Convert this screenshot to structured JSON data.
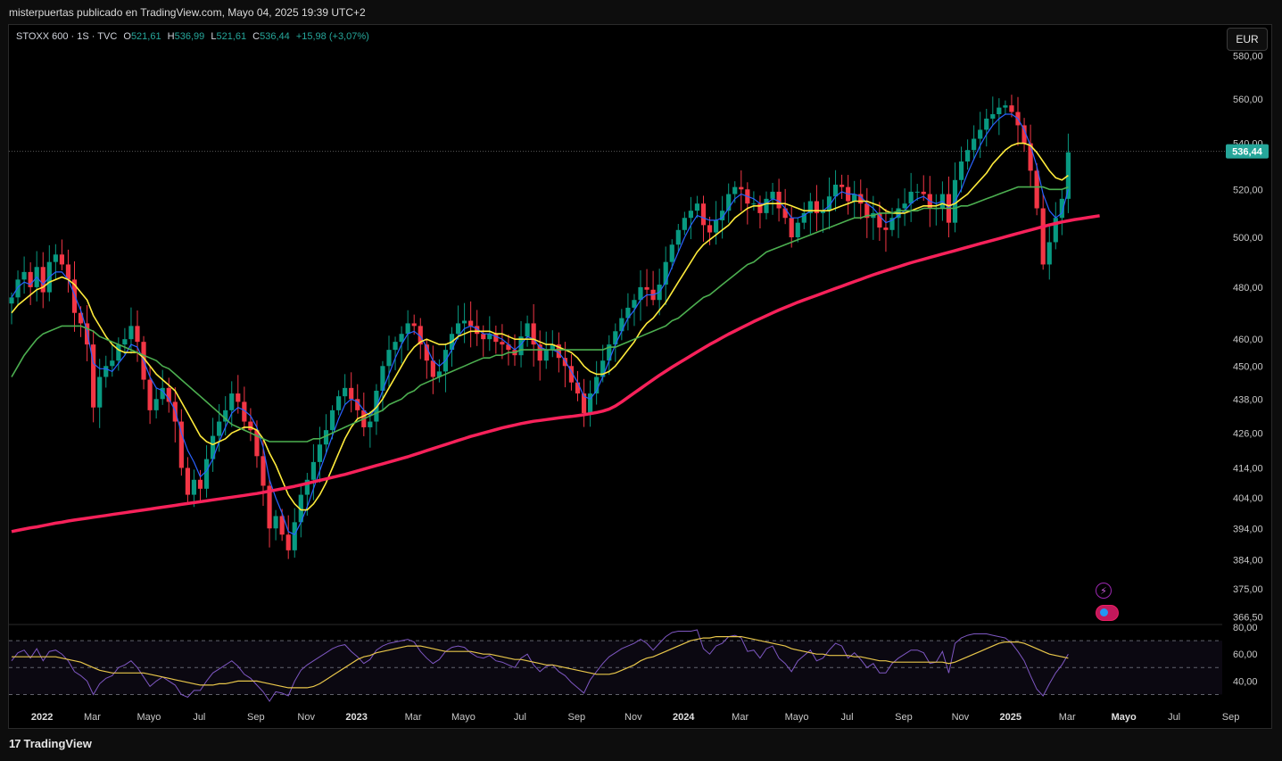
{
  "header": {
    "publisher_line": "misterpuertas publicado en TradingView.com, Mayo 04, 2025 19:39 UTC+2"
  },
  "legend": {
    "symbol": "STOXX 600 · 1S · TVC",
    "o_label": "O",
    "o_value": "521,61",
    "h_label": "H",
    "h_value": "536,99",
    "l_label": "L",
    "l_value": "521,61",
    "c_label": "C",
    "c_value": "536,44",
    "change": "+15,98 (+3,07%)"
  },
  "currency_button": "EUR",
  "last_price_label": "536,44",
  "footer": {
    "brand": "TradingView",
    "logo_glyph": "17"
  },
  "icons": {
    "bolt": "lightning-icon",
    "events": "events-icon",
    "bolt_glyph": "⚡"
  },
  "colors": {
    "up": "#089981",
    "down": "#f23645",
    "ma_fast": "#2962ff",
    "ma_mid": "#ffeb3b",
    "ma_slow": "#4caf50",
    "ma_long": "#f7215a",
    "rsi": "#7e57c2",
    "rsi_ma": "#e8c64a",
    "price_label_bg": "#26a69a"
  },
  "chart_data": {
    "type": "candlestick",
    "timeframe": "1S",
    "price_axis": {
      "scale": "log",
      "ylim": [
        365,
        582
      ],
      "ticks": [
        366.5,
        375,
        384,
        394,
        404,
        414,
        426,
        438,
        450,
        460,
        480,
        500,
        520,
        540,
        560,
        580
      ],
      "tick_labels": [
        "366,50",
        "375,00",
        "384,00",
        "394,00",
        "404,00",
        "414,00",
        "426,00",
        "438,00",
        "450,00",
        "460,00",
        "480,00",
        "500,00",
        "520,00",
        "540,00",
        "560,00",
        "580,00"
      ],
      "last_price": 536.44
    },
    "time_axis": {
      "labels": [
        "2022",
        "Mar",
        "Mayo",
        "Jul",
        "Sep",
        "Nov",
        "2023",
        "Mar",
        "Mayo",
        "Jul",
        "Sep",
        "Nov",
        "2024",
        "Mar",
        "Mayo",
        "Jul",
        "Sep",
        "Nov",
        "2025",
        "Mar",
        "Mayo",
        "Jul",
        "Sep"
      ],
      "bold": [
        true,
        false,
        false,
        false,
        false,
        false,
        true,
        false,
        false,
        false,
        false,
        false,
        true,
        false,
        false,
        false,
        false,
        false,
        true,
        false,
        true,
        false,
        false
      ],
      "week_index": [
        2,
        10,
        19,
        27,
        36,
        44,
        52,
        61,
        69,
        78,
        87,
        96,
        104,
        113,
        122,
        130,
        139,
        148,
        156,
        165,
        174,
        182,
        191
      ]
    },
    "closes": [
      476,
      483,
      486,
      480,
      488,
      478,
      490,
      493,
      489,
      483,
      470,
      466,
      458,
      435,
      446,
      450,
      452,
      458,
      460,
      465,
      459,
      445,
      434,
      438,
      442,
      437,
      430,
      414,
      405,
      410,
      407,
      417,
      425,
      430,
      434,
      440,
      437,
      430,
      427,
      418,
      408,
      394,
      398,
      392,
      387,
      396,
      405,
      410,
      416,
      422,
      427,
      434,
      439,
      442,
      438,
      434,
      428,
      430,
      441,
      450,
      456,
      459,
      462,
      466,
      465,
      458,
      452,
      446,
      448,
      456,
      462,
      466,
      467,
      465,
      462,
      460,
      462,
      459,
      458,
      456,
      454,
      461,
      466,
      458,
      452,
      456,
      458,
      453,
      450,
      444,
      440,
      433,
      440,
      446,
      452,
      458,
      463,
      468,
      472,
      475,
      480,
      479,
      475,
      481,
      490,
      497,
      503,
      508,
      511,
      514,
      505,
      502,
      507,
      511,
      518,
      521,
      520,
      514,
      514,
      510,
      516,
      519,
      512,
      508,
      500,
      506,
      510,
      515,
      510,
      511,
      517,
      522,
      521,
      515,
      518,
      514,
      508,
      510,
      504,
      503,
      508,
      512,
      514,
      519,
      519,
      518,
      512,
      512,
      518,
      506,
      524,
      532,
      537,
      542,
      546,
      551,
      553,
      556,
      557,
      554,
      548,
      540,
      528,
      512,
      489,
      498,
      508,
      516,
      536
    ],
    "series": [
      {
        "name": "MA fast",
        "values": [
          476,
          480,
          482,
          481,
          484,
          481,
          484,
          486,
          486,
          483,
          477,
          471,
          463,
          451,
          449,
          449,
          448,
          451,
          454,
          458,
          457,
          452,
          446,
          442,
          441,
          438,
          434,
          426,
          420,
          416,
          411,
          413,
          417,
          423,
          428,
          433,
          435,
          434,
          432,
          428,
          421,
          410,
          404,
          399,
          393,
          392,
          396,
          401,
          407,
          413,
          419,
          425,
          431,
          436,
          438,
          437,
          434,
          432,
          435,
          441,
          447,
          453,
          458,
          462,
          463,
          461,
          457,
          452,
          450,
          452,
          456,
          461,
          464,
          465,
          464,
          462,
          462,
          461,
          460,
          458,
          456,
          458,
          461,
          460,
          457,
          456,
          456,
          455,
          452,
          448,
          444,
          439,
          438,
          441,
          446,
          452,
          458,
          463,
          468,
          471,
          475,
          477,
          477,
          478,
          482,
          488,
          494,
          500,
          505,
          509,
          508,
          507,
          507,
          508,
          512,
          516,
          518,
          517,
          516,
          514,
          514,
          516,
          515,
          512,
          508,
          508,
          509,
          511,
          511,
          511,
          513,
          517,
          519,
          518,
          518,
          517,
          514,
          512,
          509,
          506,
          507,
          509,
          511,
          514,
          516,
          517,
          515,
          514,
          515,
          512,
          515,
          520,
          527,
          533,
          539,
          544,
          548,
          551,
          553,
          553,
          551,
          546,
          539,
          530,
          518,
          511,
          508,
          510,
          520
        ]
      },
      {
        "name": "MA mid",
        "values": [
          470,
          473,
          475,
          477,
          479,
          480,
          482,
          483,
          484,
          483,
          481,
          478,
          475,
          469,
          465,
          461,
          458,
          456,
          455,
          455,
          455,
          453,
          450,
          447,
          445,
          443,
          441,
          437,
          433,
          429,
          425,
          423,
          422,
          423,
          424,
          426,
          427,
          428,
          428,
          427,
          424,
          419,
          415,
          410,
          405,
          402,
          400,
          400,
          402,
          405,
          409,
          414,
          419,
          424,
          428,
          431,
          432,
          433,
          435,
          438,
          442,
          446,
          450,
          454,
          457,
          459,
          460,
          459,
          458,
          458,
          459,
          461,
          462,
          463,
          463,
          463,
          463,
          462,
          462,
          461,
          460,
          460,
          460,
          460,
          459,
          458,
          458,
          457,
          456,
          455,
          453,
          450,
          448,
          447,
          447,
          448,
          450,
          453,
          456,
          459,
          463,
          466,
          468,
          471,
          474,
          478,
          482,
          486,
          490,
          494,
          497,
          499,
          501,
          503,
          505,
          508,
          510,
          512,
          513,
          513,
          514,
          514,
          514,
          514,
          513,
          512,
          511,
          511,
          511,
          511,
          511,
          512,
          513,
          514,
          515,
          515,
          515,
          514,
          513,
          511,
          510,
          510,
          510,
          511,
          512,
          513,
          513,
          513,
          514,
          513,
          514,
          516,
          518,
          521,
          524,
          527,
          531,
          534,
          537,
          539,
          540,
          540,
          539,
          536,
          532,
          528,
          525,
          524,
          526
        ]
      },
      {
        "name": "MA slow",
        "values": [
          446,
          450,
          454,
          457,
          460,
          462,
          463,
          464,
          465,
          465,
          465,
          465,
          464,
          463,
          461,
          460,
          459,
          458,
          457,
          456,
          455,
          454,
          453,
          452,
          450,
          449,
          447,
          445,
          443,
          441,
          439,
          437,
          435,
          433,
          431,
          429,
          428,
          427,
          426,
          425,
          424,
          423,
          423,
          423,
          423,
          423,
          423,
          423,
          424,
          424,
          425,
          426,
          427,
          428,
          429,
          430,
          431,
          432,
          433,
          434,
          436,
          437,
          438,
          440,
          441,
          443,
          444,
          445,
          446,
          447,
          448,
          449,
          450,
          451,
          452,
          453,
          453,
          454,
          454,
          455,
          455,
          456,
          456,
          456,
          456,
          456,
          456,
          456,
          456,
          456,
          456,
          456,
          456,
          456,
          456,
          457,
          457,
          458,
          459,
          460,
          461,
          462,
          463,
          464,
          465,
          467,
          468,
          470,
          472,
          474,
          476,
          477,
          479,
          481,
          483,
          485,
          487,
          489,
          490,
          492,
          494,
          495,
          496,
          497,
          498,
          499,
          500,
          501,
          502,
          503,
          504,
          505,
          506,
          507,
          508,
          508,
          509,
          509,
          510,
          510,
          510,
          511,
          511,
          511,
          511,
          512,
          512,
          512,
          512,
          512,
          512,
          513,
          513,
          514,
          515,
          516,
          517,
          518,
          519,
          520,
          521,
          521,
          521,
          521,
          521,
          520,
          520,
          520,
          521
        ]
      },
      {
        "name": "MA long",
        "values": [
          393.0,
          393.4,
          393.8,
          394.2,
          394.5,
          394.9,
          395.3,
          395.7,
          396.0,
          396.4,
          396.7,
          397.0,
          397.3,
          397.6,
          397.9,
          398.2,
          398.5,
          398.8,
          399.1,
          399.4,
          399.7,
          400.0,
          400.3,
          400.6,
          400.9,
          401.2,
          401.5,
          401.8,
          402.1,
          402.4,
          402.7,
          403.0,
          403.3,
          403.6,
          403.9,
          404.2,
          404.5,
          404.8,
          405.1,
          405.4,
          405.8,
          406.2,
          406.6,
          407.0,
          407.4,
          407.8,
          408.3,
          408.8,
          409.3,
          409.8,
          410.3,
          410.8,
          411.3,
          411.8,
          412.4,
          413.0,
          413.6,
          414.2,
          414.8,
          415.4,
          416.0,
          416.6,
          417.2,
          417.8,
          418.5,
          419.2,
          419.9,
          420.6,
          421.3,
          422.0,
          422.7,
          423.4,
          424.1,
          424.8,
          425.4,
          426.0,
          426.6,
          427.2,
          427.8,
          428.3,
          428.8,
          429.3,
          429.7,
          430.1,
          430.4,
          430.7,
          431.0,
          431.3,
          431.6,
          431.8,
          432.1,
          432.4,
          432.8,
          433.2,
          433.7,
          434.4,
          435.5,
          437.0,
          438.6,
          440.2,
          441.8,
          443.4,
          445.0,
          446.6,
          448.1,
          449.6,
          451.0,
          452.4,
          453.8,
          455.2,
          456.6,
          458.0,
          459.3,
          460.6,
          461.9,
          463.1,
          464.3,
          465.5,
          466.7,
          467.8,
          468.9,
          470.0,
          471.1,
          472.1,
          473.1,
          474.1,
          475.0,
          475.9,
          476.8,
          477.7,
          478.6,
          479.5,
          480.4,
          481.3,
          482.2,
          483.1,
          484.0,
          484.9,
          485.7,
          486.5,
          487.3,
          488.1,
          488.9,
          489.7,
          490.4,
          491.1,
          491.8,
          492.5,
          493.2,
          493.9,
          494.6,
          495.3,
          496.0,
          496.7,
          497.4,
          498.1,
          498.8,
          499.5,
          500.2,
          500.9,
          501.6,
          502.3,
          503.0,
          503.7,
          504.4,
          505.1,
          505.7,
          506.3,
          506.8,
          507.3,
          507.7,
          508.1,
          508.5,
          508.9
        ]
      }
    ],
    "rsi": {
      "ylim": [
        25,
        80
      ],
      "ticks": [
        40,
        60,
        80
      ],
      "tick_labels": [
        "40,00",
        "60,00",
        "80,00"
      ],
      "band_upper": 70,
      "band_lower": 30,
      "mid_line": 50,
      "values": [
        55,
        61,
        63,
        57,
        64,
        55,
        62,
        63,
        60,
        55,
        47,
        44,
        40,
        30,
        38,
        42,
        44,
        50,
        52,
        55,
        50,
        43,
        36,
        40,
        43,
        40,
        37,
        30,
        28,
        33,
        33,
        40,
        46,
        49,
        52,
        55,
        51,
        45,
        42,
        37,
        32,
        25,
        32,
        31,
        29,
        40,
        48,
        52,
        55,
        58,
        61,
        64,
        66,
        67,
        62,
        58,
        53,
        56,
        63,
        66,
        68,
        69,
        70,
        71,
        69,
        62,
        57,
        53,
        56,
        62,
        65,
        66,
        65,
        61,
        58,
        57,
        59,
        55,
        54,
        52,
        50,
        57,
        60,
        52,
        47,
        51,
        52,
        47,
        44,
        39,
        35,
        31,
        41,
        47,
        53,
        58,
        61,
        64,
        66,
        68,
        71,
        68,
        63,
        68,
        73,
        76,
        77,
        77,
        77,
        78,
        64,
        60,
        66,
        68,
        73,
        74,
        72,
        62,
        63,
        57,
        64,
        66,
        57,
        53,
        47,
        55,
        59,
        63,
        55,
        57,
        63,
        68,
        66,
        57,
        61,
        56,
        50,
        53,
        46,
        46,
        53,
        57,
        60,
        63,
        63,
        61,
        53,
        54,
        62,
        46,
        68,
        72,
        74,
        75,
        75,
        75,
        74,
        73,
        72,
        68,
        62,
        55,
        44,
        34,
        29,
        38,
        46,
        52,
        60
      ],
      "ma_values": [
        58,
        58,
        58,
        58,
        58,
        58,
        58,
        58,
        57,
        56,
        55,
        54,
        52,
        50,
        48,
        47,
        46,
        46,
        46,
        46,
        46,
        46,
        45,
        44,
        43,
        42,
        41,
        40,
        39,
        38,
        37,
        37,
        37,
        38,
        38,
        39,
        40,
        40,
        40,
        40,
        39,
        38,
        37,
        36,
        35,
        35,
        35,
        35,
        36,
        38,
        41,
        44,
        47,
        50,
        53,
        56,
        58,
        59,
        61,
        62,
        63,
        64,
        65,
        66,
        66,
        66,
        65,
        64,
        63,
        62,
        62,
        62,
        62,
        62,
        61,
        60,
        60,
        59,
        58,
        57,
        56,
        56,
        55,
        54,
        53,
        52,
        52,
        51,
        50,
        49,
        48,
        47,
        46,
        45,
        45,
        45,
        46,
        48,
        50,
        52,
        55,
        57,
        58,
        60,
        62,
        64,
        66,
        68,
        70,
        71,
        72,
        72,
        73,
        73,
        73,
        73,
        73,
        72,
        71,
        70,
        69,
        68,
        67,
        66,
        64,
        63,
        62,
        61,
        60,
        60,
        59,
        59,
        59,
        59,
        58,
        58,
        57,
        56,
        55,
        55,
        54,
        54,
        54,
        54,
        54,
        54,
        54,
        54,
        54,
        53,
        54,
        56,
        58,
        60,
        62,
        64,
        66,
        68,
        69,
        69,
        69,
        68,
        66,
        64,
        62,
        60,
        59,
        58,
        57
      ]
    }
  }
}
